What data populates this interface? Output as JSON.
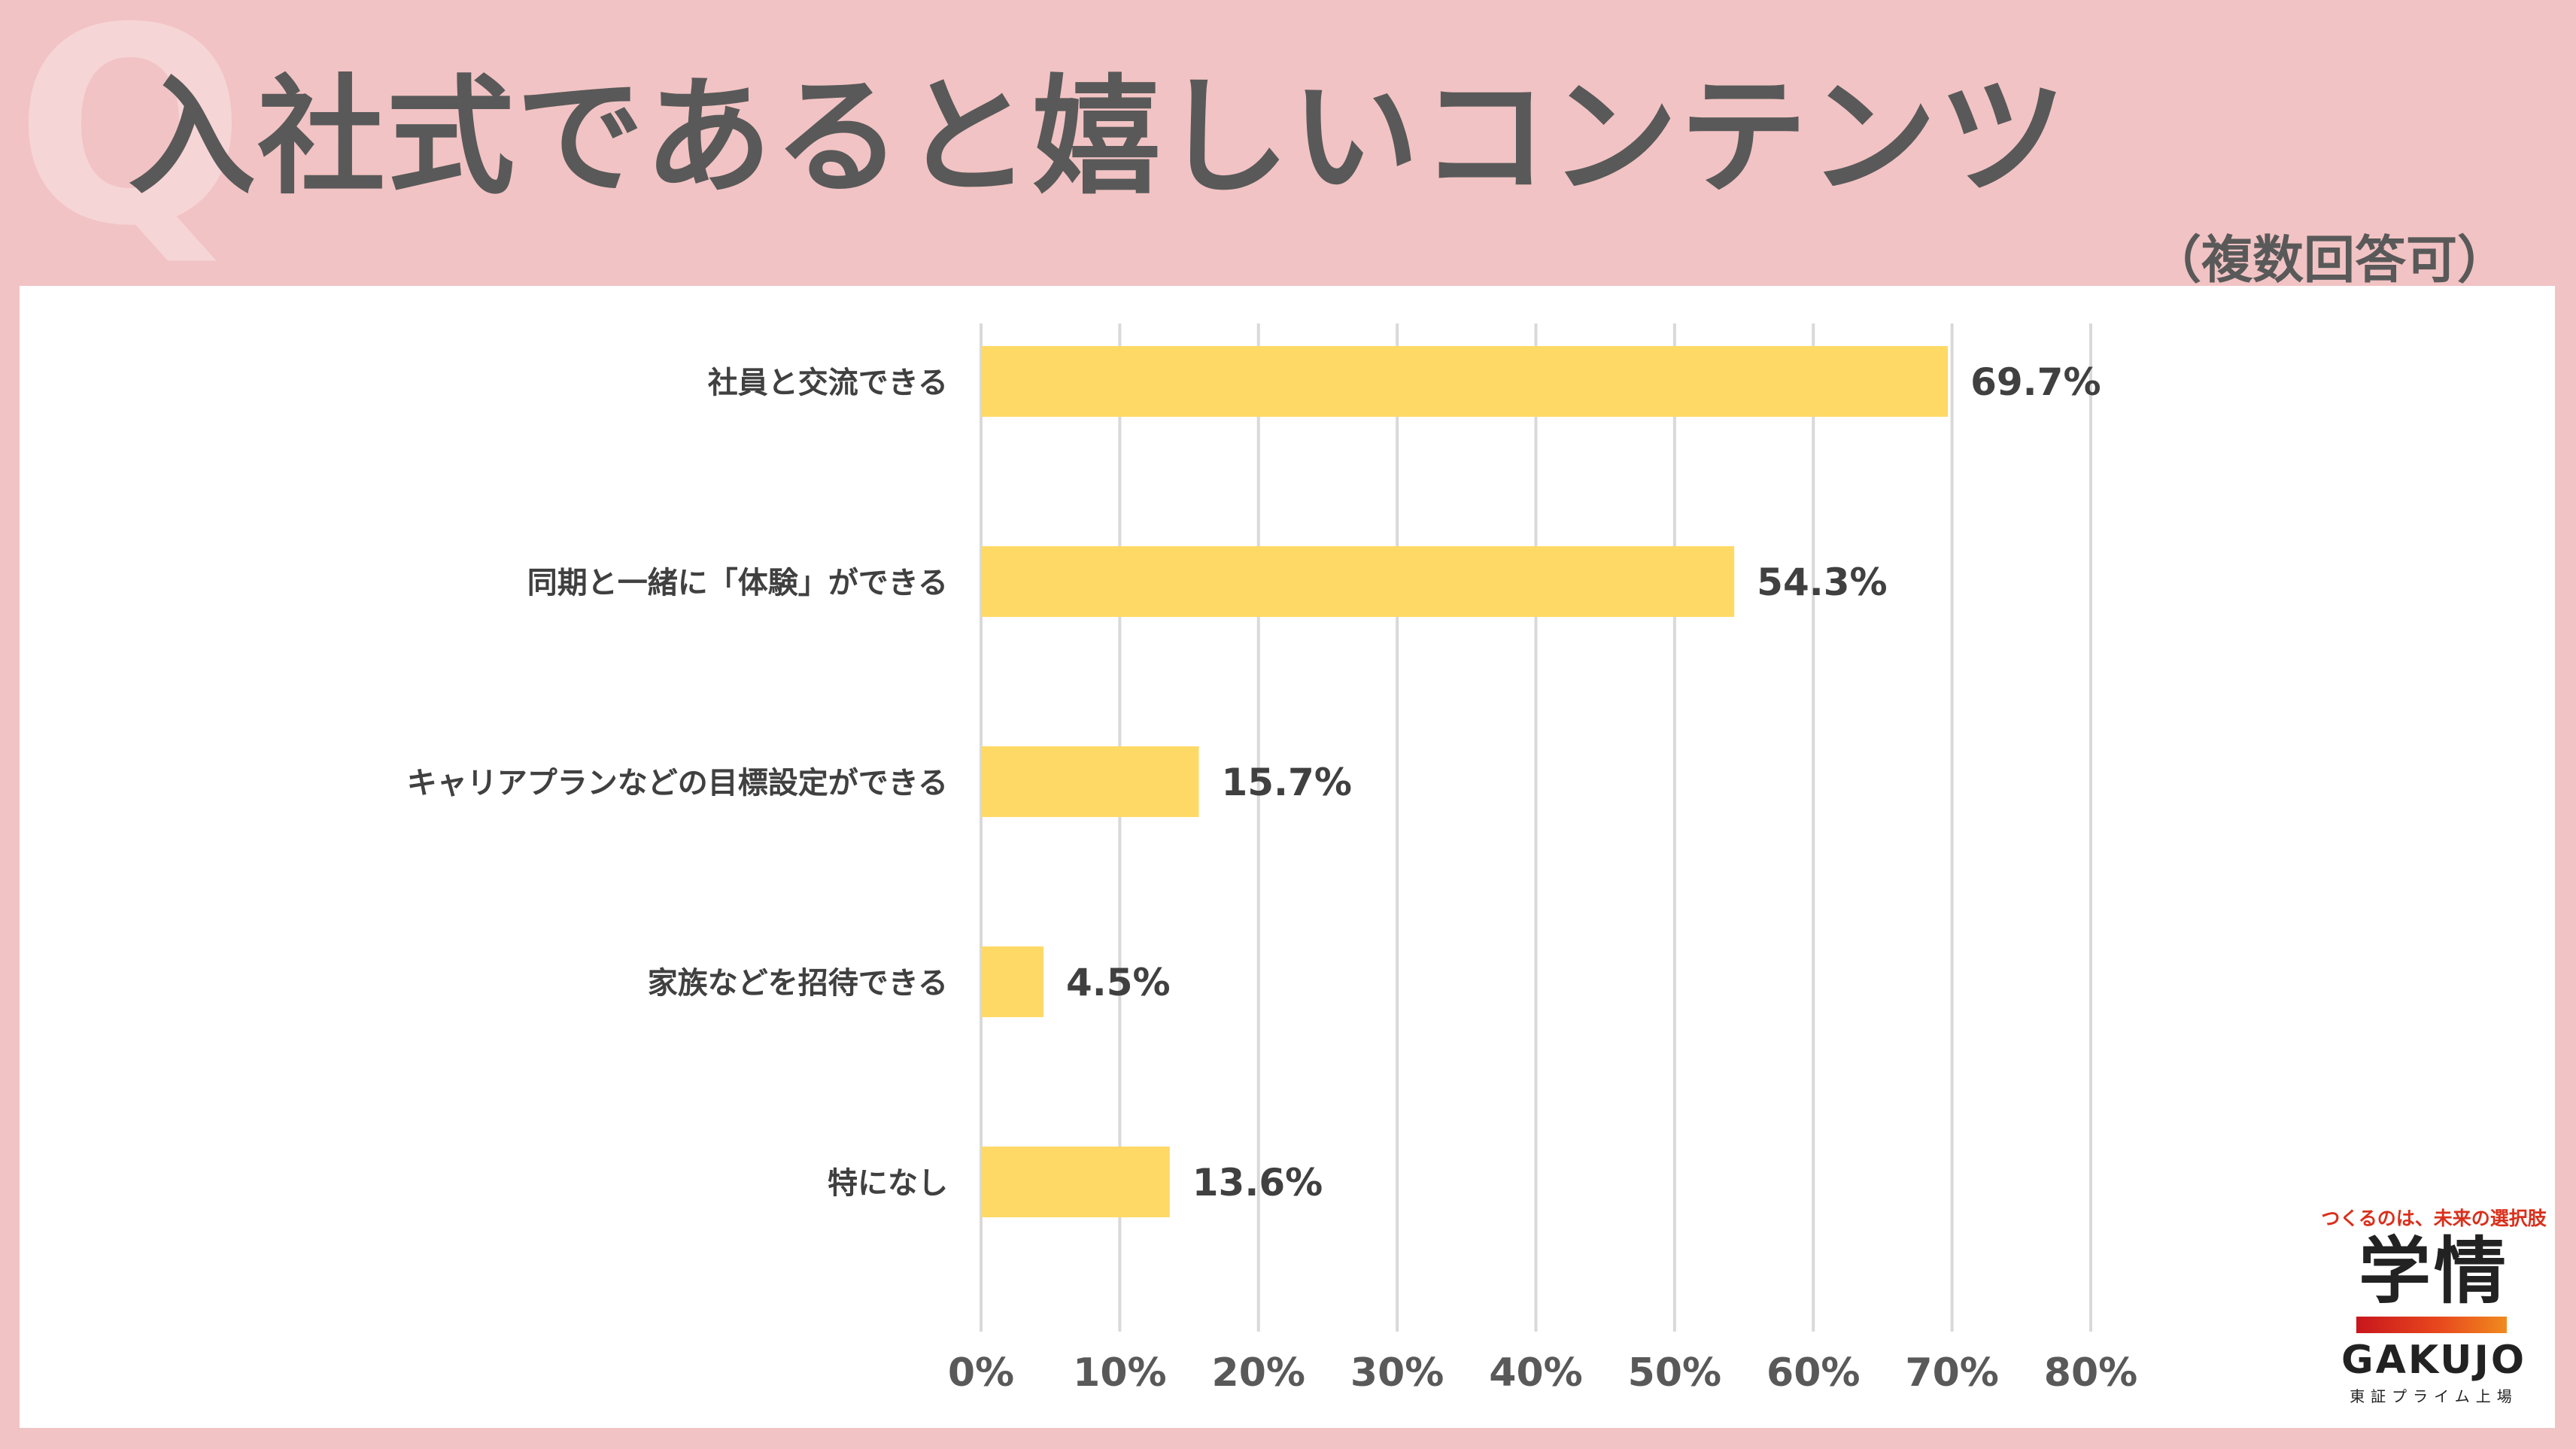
{
  "header": {
    "q_mark": "Q",
    "title": "入社式であると嬉しいコンテンツ",
    "subtitle": "（複数回答可）"
  },
  "chart_data": {
    "type": "bar",
    "orientation": "horizontal",
    "categories": [
      "社員と交流できる",
      "同期と一緒に「体験」ができる",
      "キャリアプランなどの目標設定ができる",
      "家族などを招待できる",
      "特になし"
    ],
    "values": [
      69.7,
      54.3,
      15.7,
      4.5,
      13.6
    ],
    "value_labels": [
      "69.7%",
      "54.3%",
      "15.7%",
      "4.5%",
      "13.6%"
    ],
    "xlim": [
      0,
      80
    ],
    "xticks": [
      0,
      10,
      20,
      30,
      40,
      50,
      60,
      70,
      80
    ],
    "xtick_labels": [
      "0%",
      "10%",
      "20%",
      "30%",
      "40%",
      "50%",
      "60%",
      "70%",
      "80%"
    ],
    "grid": true,
    "legend": "none",
    "colors": {
      "bar": "#ffd966",
      "grid": "#d9d9d9",
      "text": "#404040",
      "tick_text": "#595959"
    }
  },
  "logo": {
    "tagline": "つくるのは、未来の選択肢",
    "kanji": "学情",
    "name": "GAKUJO",
    "listing": "東証プライム上場"
  }
}
